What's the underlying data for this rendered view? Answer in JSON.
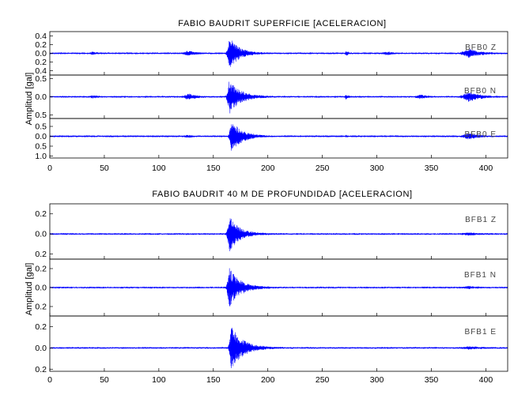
{
  "chart_data": [
    {
      "type": "line",
      "title": "FABIO BAUDRIT SUPERFICIE [ACELERACION]",
      "ylabel": "Amplitud [gal]",
      "xlabel": "",
      "xlim": [
        0,
        420
      ],
      "xticks": [
        0,
        50,
        100,
        150,
        200,
        250,
        300,
        350,
        400
      ],
      "panels": [
        {
          "channel": "BFB0",
          "component": "Z",
          "ylim": [
            -0.5,
            0.5
          ],
          "yticks": [
            -0.4,
            -0.2,
            0.0,
            0.2,
            0.4
          ],
          "yticklabels": [
            "0.4",
            "0.2",
            "0.0",
            "0.2",
            "0.4"
          ],
          "peak": 0.35,
          "noise": 0.012,
          "bursts": [
            {
              "t": 165,
              "a": 0.35,
              "rise": 2,
              "decay": 9
            },
            {
              "t": 128,
              "a": 0.05,
              "rise": 5,
              "decay": 7
            },
            {
              "t": 272,
              "a": 0.05,
              "rise": 1,
              "decay": 2
            },
            {
              "t": 385,
              "a": 0.09,
              "rise": 6,
              "decay": 10
            },
            {
              "t": 310,
              "a": 0.03,
              "rise": 4,
              "decay": 6
            },
            {
              "t": 40,
              "a": 0.025,
              "rise": 3,
              "decay": 5
            }
          ]
        },
        {
          "channel": "BFB0",
          "component": "N",
          "ylim": [
            -0.6,
            0.6
          ],
          "yticks": [
            -0.5,
            0.0,
            0.5
          ],
          "yticklabels": [
            "0.5",
            "0.0",
            "0.5"
          ],
          "peak": 0.45,
          "noise": 0.015,
          "bursts": [
            {
              "t": 165,
              "a": 0.45,
              "rise": 2,
              "decay": 10
            },
            {
              "t": 128,
              "a": 0.07,
              "rise": 5,
              "decay": 7
            },
            {
              "t": 272,
              "a": 0.07,
              "rise": 1,
              "decay": 2
            },
            {
              "t": 385,
              "a": 0.12,
              "rise": 6,
              "decay": 10
            },
            {
              "t": 340,
              "a": 0.05,
              "rise": 4,
              "decay": 6
            },
            {
              "t": 40,
              "a": 0.03,
              "rise": 3,
              "decay": 5
            }
          ]
        },
        {
          "channel": "BFB0",
          "component": "E",
          "ylim": [
            -1.1,
            0.9
          ],
          "yticks": [
            -1.0,
            -0.5,
            0.0,
            0.5
          ],
          "yticklabels": [
            "1.0",
            "0.5",
            "0.0",
            "0.5"
          ],
          "peak": 0.75,
          "noise": 0.02,
          "bursts": [
            {
              "t": 167,
              "a": 0.75,
              "rise": 2,
              "decay": 10
            },
            {
              "t": 128,
              "a": 0.06,
              "rise": 5,
              "decay": 7
            },
            {
              "t": 272,
              "a": 0.05,
              "rise": 1,
              "decay": 2
            },
            {
              "t": 385,
              "a": 0.14,
              "rise": 6,
              "decay": 10
            },
            {
              "t": 40,
              "a": 0.03,
              "rise": 3,
              "decay": 5
            }
          ]
        }
      ]
    },
    {
      "type": "line",
      "title": "FABIO BAUDRIT 40 M DE PROFUNDIDAD [ACELERACION]",
      "ylabel": "Amplitud [gal]",
      "xlabel": "",
      "xlim": [
        0,
        420
      ],
      "xticks": [
        0,
        50,
        100,
        150,
        200,
        250,
        300,
        350,
        400
      ],
      "panels": [
        {
          "channel": "BFB1",
          "component": "Z",
          "ylim": [
            -0.25,
            0.3
          ],
          "yticks": [
            -0.2,
            0.0,
            0.2
          ],
          "yticklabels": [
            "0.2",
            "0.0",
            "0.2"
          ],
          "peak": 0.17,
          "noise": 0.006,
          "bursts": [
            {
              "t": 165,
              "a": 0.17,
              "rise": 2,
              "decay": 9
            },
            {
              "t": 385,
              "a": 0.01,
              "rise": 6,
              "decay": 10
            }
          ]
        },
        {
          "channel": "BFB1",
          "component": "N",
          "ylim": [
            -0.3,
            0.3
          ],
          "yticks": [
            -0.2,
            0.0,
            0.2
          ],
          "yticklabels": [
            "0.2",
            "0.0",
            "0.2"
          ],
          "peak": 0.2,
          "noise": 0.006,
          "bursts": [
            {
              "t": 165,
              "a": 0.2,
              "rise": 2,
              "decay": 10
            },
            {
              "t": 385,
              "a": 0.01,
              "rise": 6,
              "decay": 10
            }
          ]
        },
        {
          "channel": "BFB1",
          "component": "E",
          "ylim": [
            -0.22,
            0.3
          ],
          "yticks": [
            -0.2,
            0.0,
            0.2
          ],
          "yticklabels": [
            "0.2",
            "0.0",
            "0.2"
          ],
          "peak": 0.2,
          "noise": 0.006,
          "bursts": [
            {
              "t": 167,
              "a": 0.2,
              "rise": 2,
              "decay": 10
            },
            {
              "t": 385,
              "a": 0.01,
              "rise": 6,
              "decay": 10
            }
          ]
        }
      ]
    }
  ]
}
